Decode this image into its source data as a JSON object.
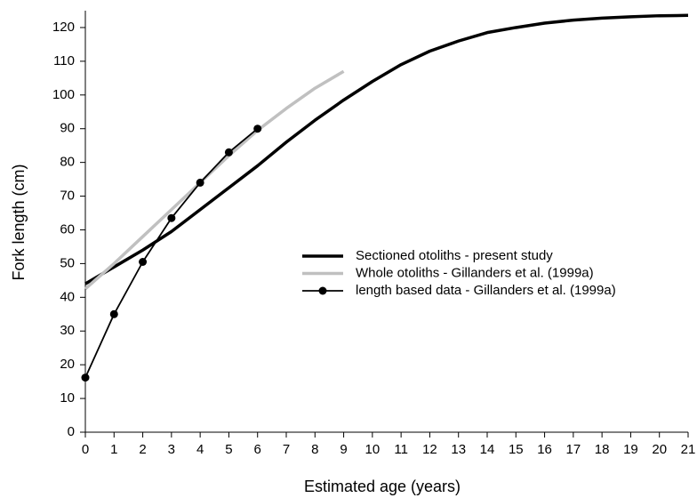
{
  "chart_data": {
    "type": "line",
    "x_label": "Estimated age (years)",
    "y_label": "Fork length (cm)",
    "x": [
      0,
      1,
      2,
      3,
      4,
      5,
      6,
      7,
      8,
      9,
      10,
      11,
      12,
      13,
      14,
      15,
      16,
      17,
      18,
      19,
      20,
      21
    ],
    "xlim": [
      0,
      21
    ],
    "xticks": [
      0,
      1,
      2,
      3,
      4,
      5,
      6,
      7,
      8,
      9,
      10,
      11,
      12,
      13,
      14,
      15,
      16,
      17,
      18,
      19,
      20,
      21
    ],
    "ylim": [
      0,
      125
    ],
    "yticks": [
      0,
      10,
      20,
      30,
      40,
      50,
      60,
      70,
      80,
      90,
      100,
      110,
      120
    ],
    "series": [
      {
        "name": "Sectioned otoliths - present study",
        "color": "#000000",
        "line_width": 3.5,
        "marker": false,
        "values": [
          44,
          49,
          54,
          59.5,
          66,
          72.5,
          79,
          86,
          92.5,
          98.5,
          104,
          109,
          113,
          116,
          118.5,
          120,
          121.3,
          122.2,
          122.8,
          123.2,
          123.5,
          123.6
        ]
      },
      {
        "name": "Whole otoliths - Gillanders et al. (1999a)",
        "color": "#c0c0c0",
        "line_width": 3.5,
        "marker": false,
        "values": [
          42.5,
          50,
          58,
          66,
          74,
          82,
          89.5,
          96,
          102,
          107,
          null,
          null,
          null,
          null,
          null,
          null,
          null,
          null,
          null,
          null,
          null,
          null
        ]
      },
      {
        "name": "length based data - Gillanders et al. (1999a)",
        "color": "#000000",
        "line_width": 1.8,
        "marker": true,
        "values": [
          16.2,
          35,
          50.5,
          63.5,
          74,
          83,
          90,
          null,
          null,
          null,
          null,
          null,
          null,
          null,
          null,
          null,
          null,
          null,
          null,
          null,
          null,
          null
        ]
      }
    ]
  }
}
